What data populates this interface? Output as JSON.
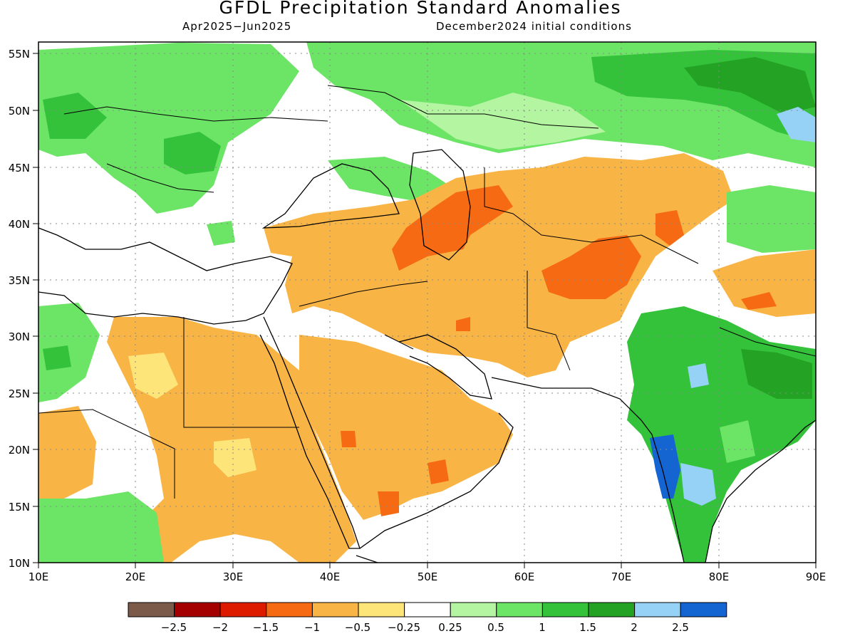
{
  "title": "GFDL Precipitation Standard Anomalies",
  "period": "Apr2025−Jun2025",
  "init": "December2024 initial conditions",
  "lat_labels": [
    "55N",
    "50N",
    "45N",
    "40N",
    "35N",
    "30N",
    "25N",
    "20N",
    "15N",
    "10N"
  ],
  "lon_labels": [
    "10E",
    "20E",
    "30E",
    "40E",
    "50E",
    "60E",
    "70E",
    "80E",
    "90E"
  ],
  "colorbar": {
    "colors": [
      "#7b5a4a",
      "#a40000",
      "#dd1b00",
      "#f76a14",
      "#f9b446",
      "#fde57a",
      "#ffffff",
      "#b4f5a2",
      "#6ce466",
      "#34c23a",
      "#24a224",
      "#96d2f6",
      "#1464d2"
    ],
    "labels": [
      "−2.5",
      "−2",
      "−1.5",
      "−1",
      "−0.5",
      "−0.25",
      "0.25",
      "0.5",
      "1",
      "1.5",
      "2",
      "2.5"
    ]
  },
  "legend_categories": {
    "strong_dry": "#f76a14",
    "dry": "#f9b446",
    "slightly_dry": "#fde57a",
    "slightly_wet": "#b4f5a2",
    "wet": "#6ce466",
    "wetter": "#34c23a",
    "very_wet": "#24a224",
    "extreme_wet": "#1464d2"
  }
}
